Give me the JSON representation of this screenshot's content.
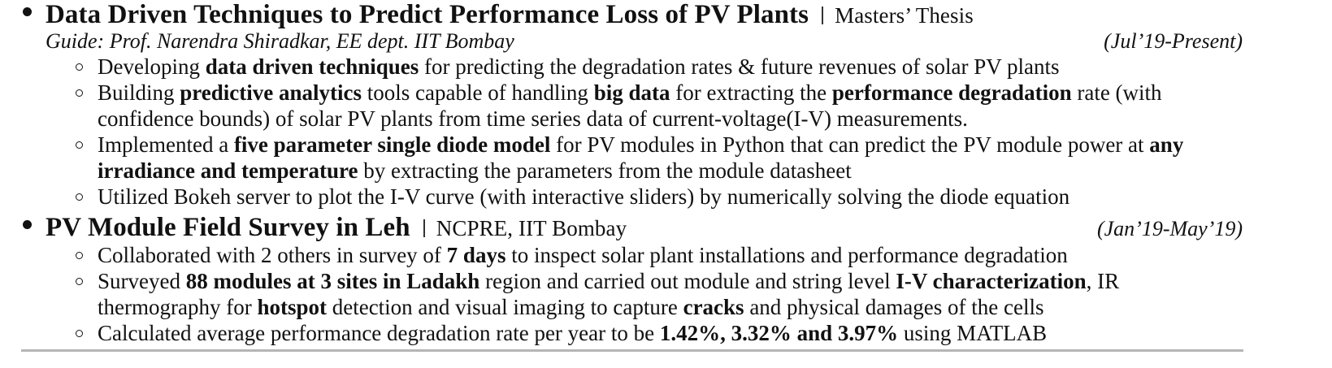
{
  "entries": [
    {
      "title": "Data Driven Techniques to Predict Performance Loss of PV Plants",
      "org": "Masters’ Thesis",
      "guide": "Guide: Prof. Narendra Shiradkar, EE dept. IIT Bombay",
      "date": "(Jul’19-Present)",
      "items": [
        [
          {
            "t": "Developing ",
            "b": false
          },
          {
            "t": "data driven techniques",
            "b": true
          },
          {
            "t": " for predicting the degradation rates & future revenues of solar PV plants",
            "b": false
          }
        ],
        [
          {
            "t": "Building ",
            "b": false
          },
          {
            "t": "predictive analytics",
            "b": true
          },
          {
            "t": " tools capable of handling ",
            "b": false
          },
          {
            "t": "big data",
            "b": true
          },
          {
            "t": " for extracting the ",
            "b": false
          },
          {
            "t": "performance degradation",
            "b": true
          },
          {
            "t": " rate (with confidence bounds) of solar PV plants from time series data of current-voltage(I-V) measurements.",
            "b": false
          }
        ],
        [
          {
            "t": "Implemented a ",
            "b": false
          },
          {
            "t": "five parameter single diode model",
            "b": true
          },
          {
            "t": " for PV modules in Python that can predict the PV module power at ",
            "b": false
          },
          {
            "t": "any irradiance and temperature",
            "b": true
          },
          {
            "t": " by extracting the parameters from the module datasheet",
            "b": false
          }
        ],
        [
          {
            "t": "Utilized Bokeh server to plot the I-V curve (with interactive sliders) by numerically solving the diode equation",
            "b": false
          }
        ]
      ]
    },
    {
      "title": "PV Module Field Survey in Leh",
      "org": "NCPRE, IIT Bombay",
      "date": "(Jan’19-May’19)",
      "items": [
        [
          {
            "t": "Collaborated with 2 others in survey of ",
            "b": false
          },
          {
            "t": "7 days",
            "b": true
          },
          {
            "t": " to inspect solar plant installations and performance degradation",
            "b": false
          }
        ],
        [
          {
            "t": "Surveyed ",
            "b": false
          },
          {
            "t": "88 modules at 3 sites in Ladakh",
            "b": true
          },
          {
            "t": " region and carried out module and string level ",
            "b": false
          },
          {
            "t": "I-V characterization",
            "b": true
          },
          {
            "t": ", IR thermography for ",
            "b": false
          },
          {
            "t": "hotspot",
            "b": true
          },
          {
            "t": " detection and visual imaging to capture ",
            "b": false
          },
          {
            "t": "cracks",
            "b": true
          },
          {
            "t": " and physical damages of the cells",
            "b": false
          }
        ],
        [
          {
            "t": "Calculated average performance degradation rate per year to be ",
            "b": false
          },
          {
            "t": "1.42%, 3.32% and 3.97%",
            "b": true
          },
          {
            "t": " using MATLAB",
            "b": false
          }
        ]
      ]
    }
  ]
}
